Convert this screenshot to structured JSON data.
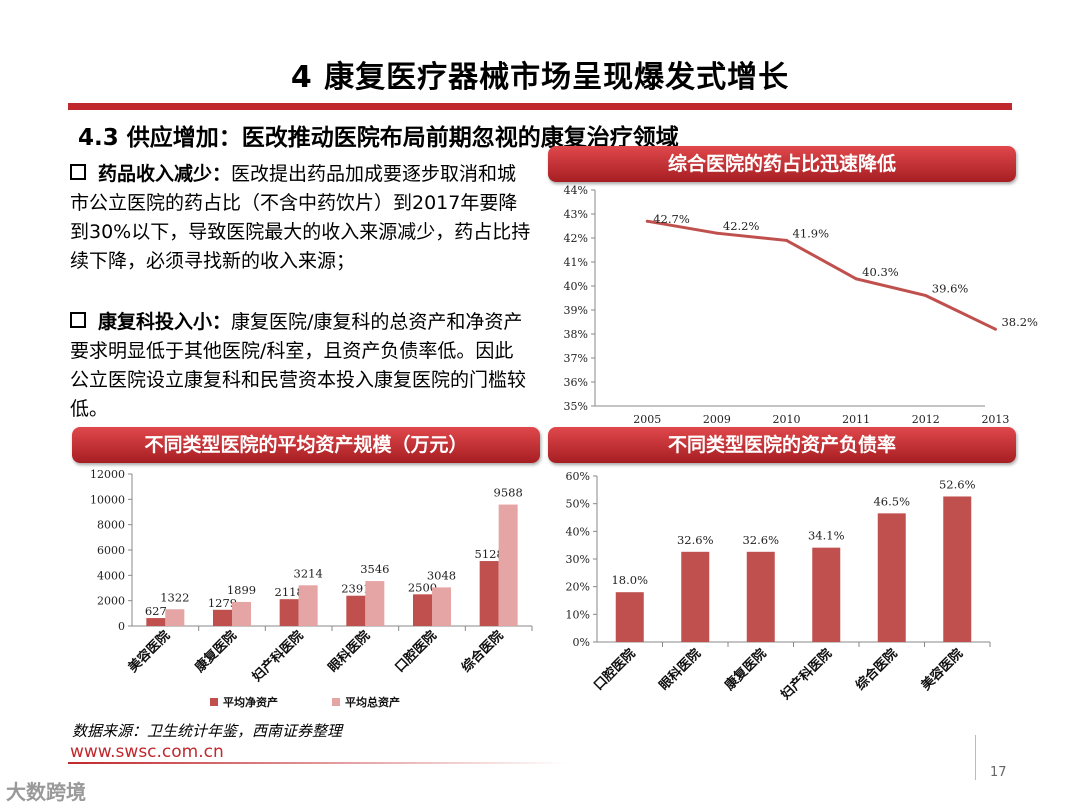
{
  "slide": {
    "title": "4  康复医疗器械市场呈现爆发式增长",
    "subtitle": "4.3 供应增加：医改推动医院布局前期忽视的康复治疗领域",
    "bullets": [
      {
        "head": "药品收入减少：",
        "body": "医改提出药品加成要逐步取消和城市公立医院的药占比（不含中药饮片）到2017年要降到30%以下，导致医院最大的收入来源减少，药占比持续下降，必须寻找新的收入来源；"
      },
      {
        "head": "康复科投入小：",
        "body": "康复医院/康复科的总资产和净资产要求明显低于其他医院/科室，且资产负债率低。因此公立医院设立康复科和民营资本投入康复医院的门槛较低。"
      }
    ],
    "source": "数据来源：卫生统计年鉴，西南证券整理",
    "website": "www.swsc.com.cn",
    "page_number": "17",
    "watermark": "大数跨境"
  },
  "colors": {
    "accent": "#c0282d",
    "net_bar": "#c0504d",
    "total_bar": "#e6a5a5",
    "line": "#c0504d"
  },
  "chart_data": [
    {
      "type": "line",
      "title": "综合医院的药占比迅速降低",
      "x": [
        "2005",
        "2009",
        "2010",
        "2011",
        "2012",
        "2013"
      ],
      "values": [
        42.7,
        42.2,
        41.9,
        40.3,
        39.6,
        38.2
      ],
      "value_labels": [
        "42.7%",
        "42.2%",
        "41.9%",
        "40.3%",
        "39.6%",
        "38.2%"
      ],
      "ylim": [
        35,
        44
      ],
      "yticks": [
        "35%",
        "36%",
        "37%",
        "38%",
        "39%",
        "40%",
        "41%",
        "42%",
        "43%",
        "44%"
      ]
    },
    {
      "type": "bar",
      "title": "不同类型医院的平均资产规模（万元）",
      "categories": [
        "美容医院",
        "康复医院",
        "妇产科医院",
        "眼科医院",
        "口腔医院",
        "综合医院"
      ],
      "series": [
        {
          "name": "平均净资产",
          "values": [
            627,
            1279,
            2118,
            2391,
            2500,
            5128
          ]
        },
        {
          "name": "平均总资产",
          "values": [
            1322,
            1899,
            3214,
            3546,
            3048,
            9588
          ]
        }
      ],
      "ylim": [
        0,
        12000
      ],
      "yticks": [
        "0",
        "2000",
        "4000",
        "6000",
        "8000",
        "10000",
        "12000"
      ],
      "legend": "bottom"
    },
    {
      "type": "bar",
      "title": "不同类型医院的资产负债率",
      "categories": [
        "口腔医院",
        "眼科医院",
        "康复医院",
        "妇产科医院",
        "综合医院",
        "美容医院"
      ],
      "values": [
        18.0,
        32.6,
        32.6,
        34.1,
        46.5,
        52.6
      ],
      "value_labels": [
        "18.0%",
        "32.6%",
        "32.6%",
        "34.1%",
        "46.5%",
        "52.6%"
      ],
      "ylim": [
        0,
        60
      ],
      "yticks": [
        "0%",
        "10%",
        "20%",
        "30%",
        "40%",
        "50%",
        "60%"
      ]
    }
  ]
}
